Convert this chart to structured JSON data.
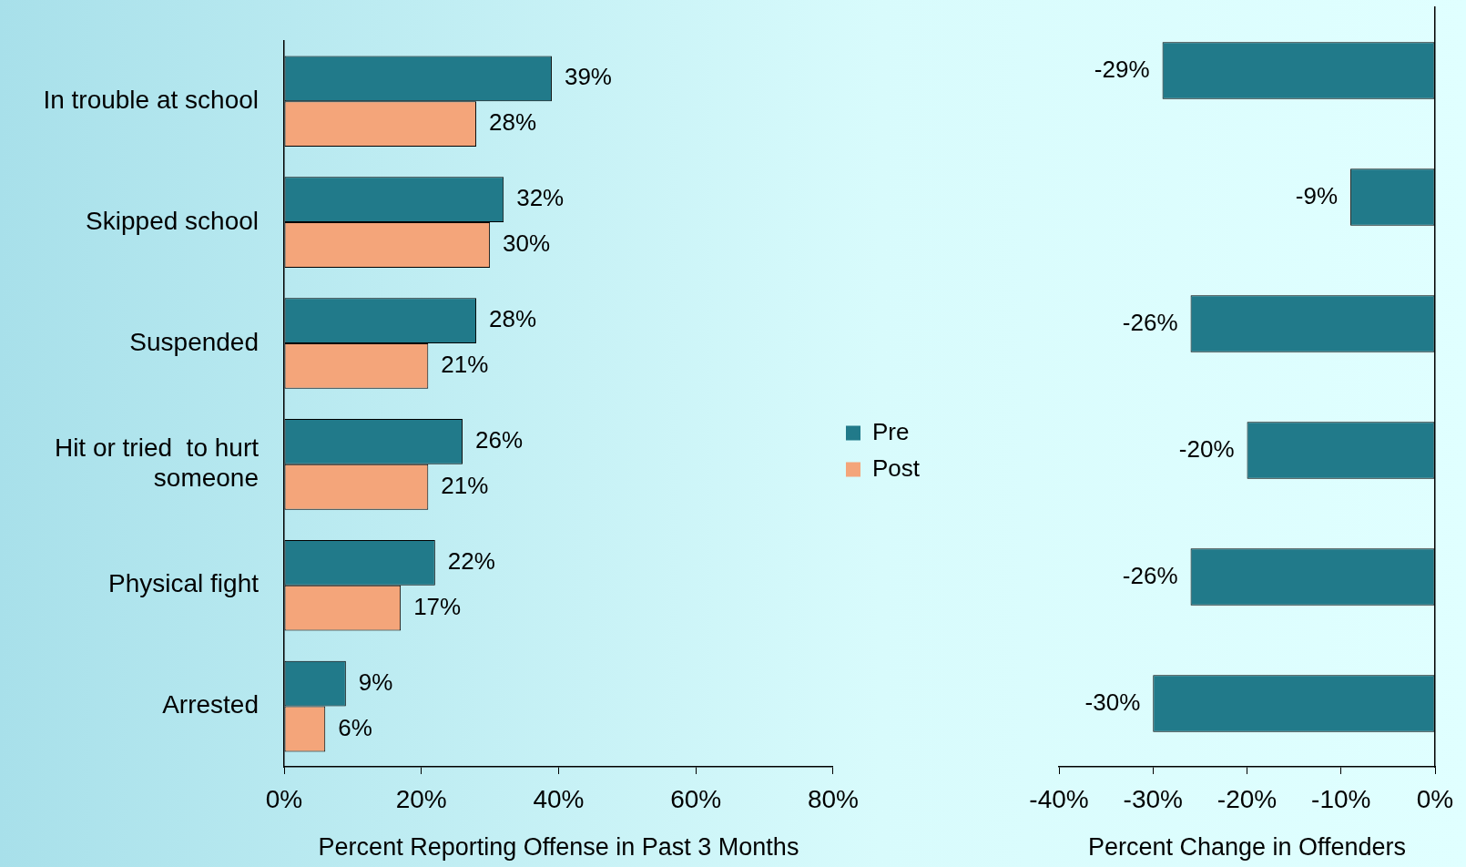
{
  "chart_data": [
    {
      "type": "bar",
      "orientation": "horizontal",
      "categories": [
        "In trouble at school",
        "Skipped school",
        "Suspended",
        "Hit or tried  to hurt someone",
        "Physical fight",
        "Arrested"
      ],
      "series": [
        {
          "name": "Pre",
          "color": "#217a8a",
          "values": [
            39,
            32,
            28,
            26,
            22,
            9
          ],
          "value_labels": [
            "39%",
            "32%",
            "28%",
            "26%",
            "22%",
            "9%"
          ]
        },
        {
          "name": "Post",
          "color": "#f4a57a",
          "values": [
            28,
            30,
            21,
            21,
            17,
            6
          ],
          "value_labels": [
            "28%",
            "30%",
            "21%",
            "21%",
            "17%",
            "6%"
          ]
        }
      ],
      "xlim": [
        0,
        80
      ],
      "xticks": [
        {
          "value": 0,
          "label": "0%"
        },
        {
          "value": 20,
          "label": "20%"
        },
        {
          "value": 40,
          "label": "40%"
        },
        {
          "value": 60,
          "label": "60%"
        },
        {
          "value": 80,
          "label": "80%"
        }
      ],
      "xlabel": "Percent Reporting Offense in Past 3 Months",
      "legend": "right",
      "grid": false
    },
    {
      "type": "bar",
      "orientation": "horizontal",
      "categories": [
        null,
        null,
        null,
        null,
        null,
        null
      ],
      "values": [
        -29,
        -9,
        -26,
        -20,
        -26,
        -30
      ],
      "color": "#217a8a",
      "value_labels": [
        "-29%",
        "-9%",
        "-26%",
        "-20%",
        "-26%",
        "-30%"
      ],
      "xlim": [
        -40,
        0
      ],
      "xticks": [
        {
          "value": -40,
          "label": "-40%"
        },
        {
          "value": -30,
          "label": "-30%"
        },
        {
          "value": -20,
          "label": "-20%"
        },
        {
          "value": -10,
          "label": "-10%"
        },
        {
          "value": 0,
          "label": "0%"
        }
      ],
      "xlabel": "Percent Change in Offenders",
      "grid": false
    }
  ]
}
